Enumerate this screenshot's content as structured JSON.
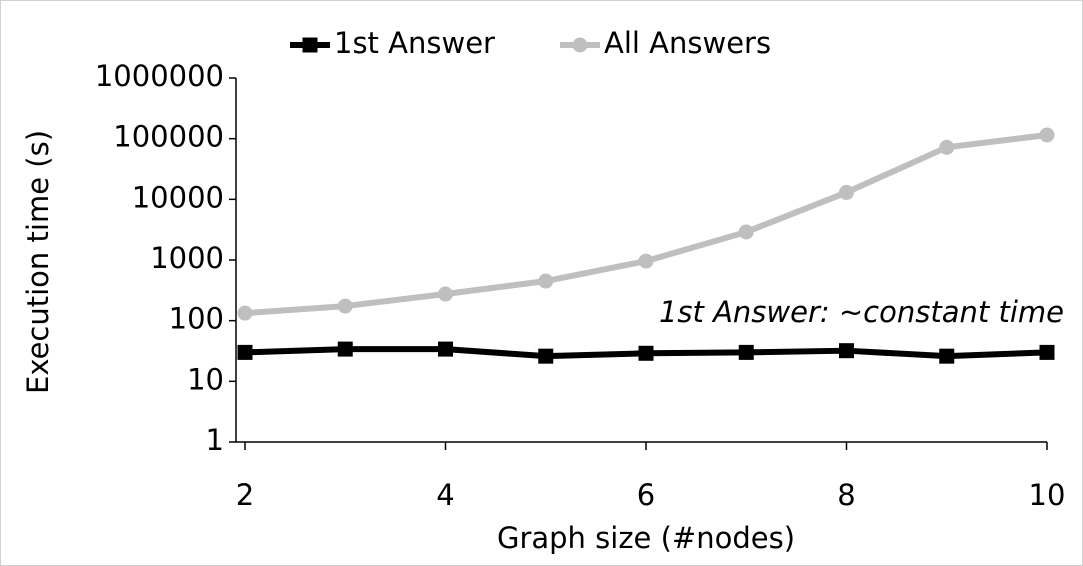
{
  "chart_data": {
    "type": "line",
    "x": [
      2,
      3,
      4,
      5,
      6,
      7,
      8,
      9,
      10
    ],
    "xlim": [
      2,
      10
    ],
    "xticks": [
      2,
      4,
      6,
      8,
      10
    ],
    "ylim": [
      1,
      1000000
    ],
    "yticks": [
      1,
      10,
      100,
      1000,
      10000,
      100000,
      1000000
    ],
    "ylog": true,
    "grid": false,
    "x_label": "Graph size (#nodes)",
    "y_label": "Execution time (s)",
    "annotation": "1st Answer: ~constant time",
    "legend_position": "top",
    "series": [
      {
        "name": "1st Answer",
        "color": "#000000",
        "marker": "square",
        "values": [
          30,
          34,
          34,
          26,
          29,
          30,
          32,
          26,
          30
        ]
      },
      {
        "name": "All Answers",
        "color": "#bfbfbf",
        "marker": "circle",
        "values": [
          133,
          174,
          275,
          450,
          960,
          2900,
          13000,
          72000,
          115000
        ]
      }
    ]
  }
}
